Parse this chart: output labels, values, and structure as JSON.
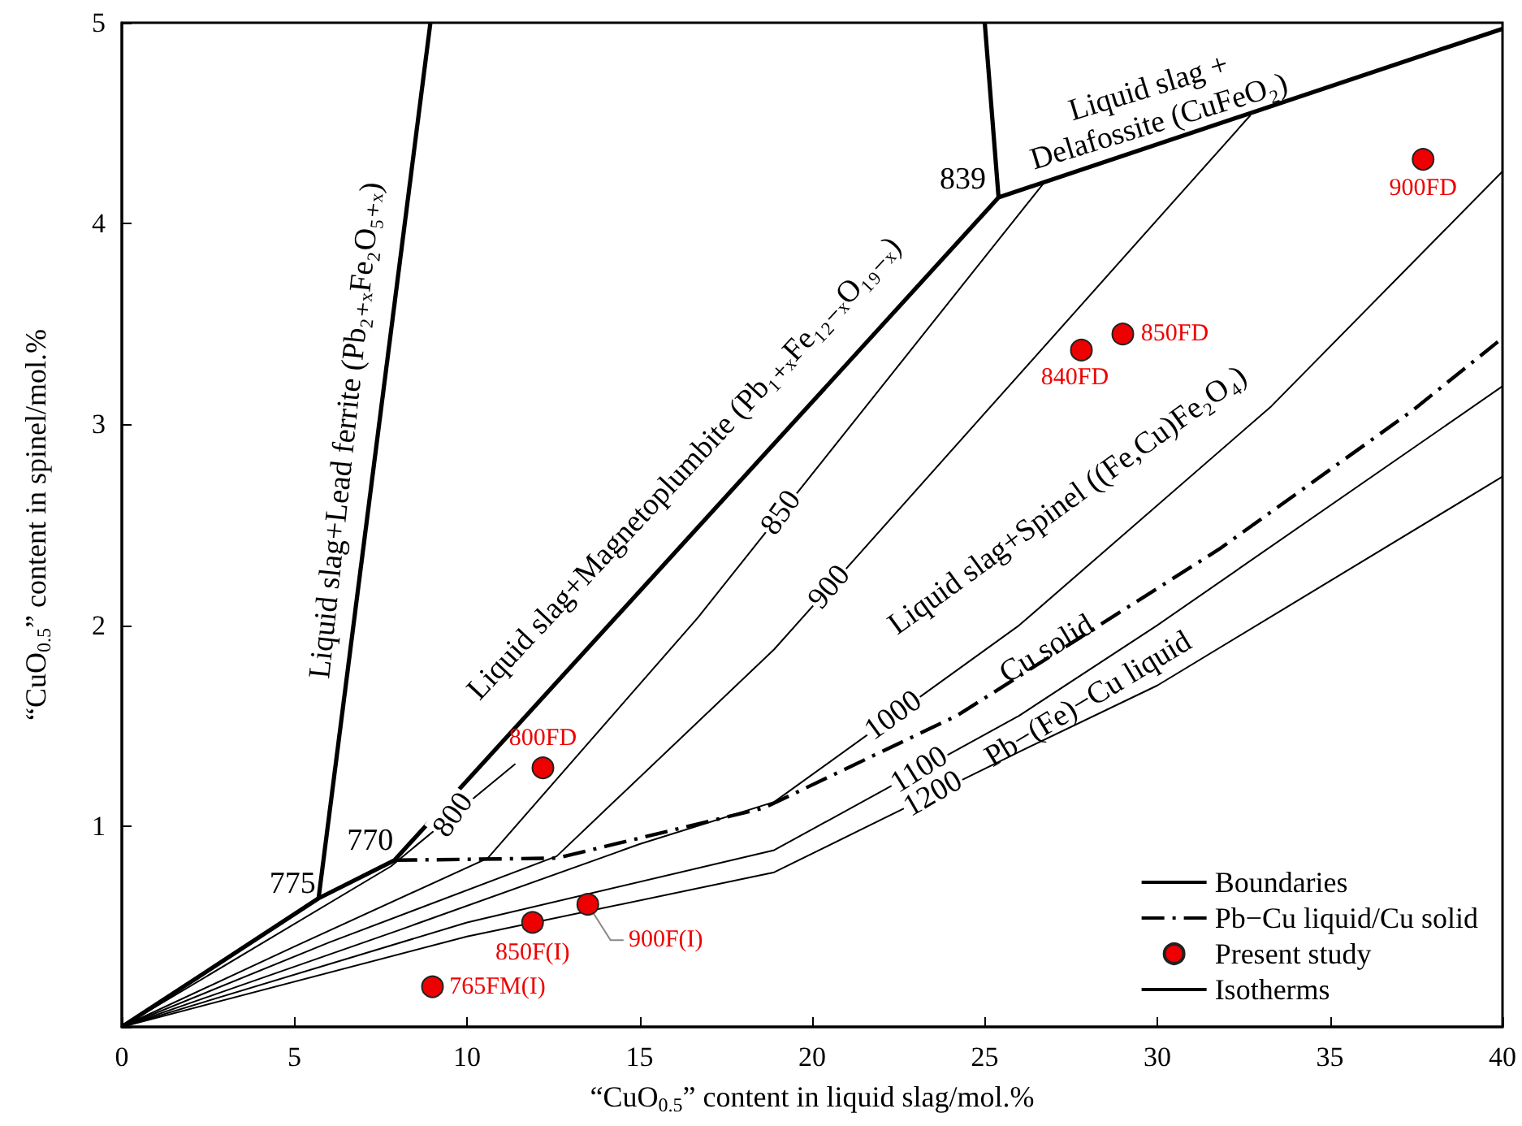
{
  "chart_data": {
    "type": "line",
    "xlabel": "“CuO$_{0.5}$” content in liquid slag/mol.%",
    "ylabel": "“CuO$_{0.5}$” content in spinel/mol.%",
    "xlim": [
      0,
      40
    ],
    "xticks": [
      0,
      5,
      10,
      15,
      20,
      25,
      30,
      35,
      40
    ],
    "ylim": [
      0,
      5
    ],
    "yticks": [
      {
        "value": 0,
        "label": null
      },
      1,
      2,
      3,
      4,
      5
    ],
    "grid": false,
    "legend": "bottom right",
    "series": [
      {
        "name": "Boundaries",
        "color": "#000000",
        "line_style": "solid",
        "marker": "none",
        "x": [
          0,
          5.7,
          7.9,
          25.4,
          40
        ],
        "values": [
          0,
          0.64,
          0.83,
          4.13,
          4.97
        ]
      },
      {
        "color": "#000000",
        "line_style": "solid",
        "marker": "none",
        "x": [
          5.7,
          8.94
        ],
        "values": [
          0.64,
          5
        ]
      },
      {
        "color": "#000000",
        "line_style": "solid",
        "marker": "none",
        "x": [
          25.4,
          25.0
        ],
        "values": [
          4.13,
          5
        ]
      },
      {
        "name": "Pb−Cu liquid/Cu solid",
        "color": "#000000",
        "line_style": "dashdot",
        "marker": "none",
        "x": [
          7.9,
          12.6,
          18.6,
          24.2,
          31.8,
          37.4,
          40
        ],
        "values": [
          0.83,
          0.84,
          1.09,
          1.55,
          2.38,
          3.07,
          3.43
        ]
      },
      {
        "name": "Present study",
        "type": "scatter",
        "color": "#ee0000",
        "marker": "circle",
        "x": [
          12.2,
          27.8,
          29.0,
          37.7,
          11.9,
          13.5,
          9.0
        ],
        "values": [
          1.29,
          3.37,
          3.45,
          4.32,
          0.52,
          0.61,
          0.2
        ]
      },
      {
        "name": "Isotherms",
        "color": "#000000",
        "line_style": "solid",
        "marker": "none",
        "x": [
          0,
          4,
          7.8,
          11.4
        ],
        "values": [
          0,
          0.41,
          0.8,
          1.31
        ]
      },
      {
        "color": "#000000",
        "line_style": "solid",
        "marker": "none",
        "x": [
          0,
          5,
          10.6,
          16.7,
          26.7
        ],
        "values": [
          0,
          0.4,
          0.84,
          2.04,
          4.2
        ]
      },
      {
        "color": "#000000",
        "line_style": "solid",
        "marker": "none",
        "x": [
          0,
          6,
          12.6,
          18.9,
          32.7
        ],
        "values": [
          0,
          0.42,
          0.85,
          1.88,
          4.54
        ]
      },
      {
        "color": "#000000",
        "line_style": "solid",
        "marker": "none",
        "x": [
          0,
          8,
          15,
          18.9,
          26,
          33.3,
          40
        ],
        "values": [
          0,
          0.48,
          0.91,
          1.12,
          2.0,
          3.09,
          4.26
        ]
      },
      {
        "color": "#000000",
        "line_style": "solid",
        "marker": "none",
        "x": [
          0,
          10,
          18.9,
          26,
          30,
          40
        ],
        "values": [
          0,
          0.52,
          0.88,
          1.55,
          2.0,
          3.19
        ]
      },
      {
        "color": "#000000",
        "line_style": "solid",
        "marker": "none",
        "x": [
          0,
          10,
          18.9,
          26,
          30,
          40
        ],
        "values": [
          0,
          0.45,
          0.77,
          1.37,
          1.7,
          2.74
        ]
      }
    ],
    "annotations": [
      "Liquid slag+Lead ferrite (Pb₂₊ₓFe₂O₅₊ₓ)",
      "Liquid slag+Magnetoplumbite (Pb₁₊ₓFe₁₂₋ₓO₁₉₋ₓ)",
      "Liquid slag +\nDelafossite (CuFeO₂)",
      "Liquid slag+Spinel ((Fe,Cu)Fe₂O₄)",
      "Cu solid",
      "Pb−(Fe)−Cu liquid",
      {
        "text": "775",
        "x": 5.7,
        "y": 0.64
      },
      {
        "text": "770",
        "x": 7.9,
        "y": 0.83
      },
      {
        "text": "839",
        "x": 25.4,
        "y": 4.13
      },
      {
        "text": "800",
        "x": 9.6,
        "y": 1.055
      },
      {
        "text": "850",
        "x": 19.1,
        "y": 2.56
      },
      {
        "text": "900",
        "x": 20.5,
        "y": 2.19
      },
      {
        "text": "1000",
        "x": 22.35,
        "y": 1.55
      },
      {
        "text": "1100",
        "x": 23.1,
        "y": 1.28
      },
      {
        "text": "1200",
        "x": 23.5,
        "y": 1.16
      },
      {
        "text": "800FD",
        "x": 12.2,
        "y": 1.29
      },
      {
        "text": "840FD",
        "x": 27.8,
        "y": 3.37
      },
      {
        "text": "850FD",
        "x": 29.0,
        "y": 3.45
      },
      {
        "text": "900FD",
        "x": 37.7,
        "y": 4.32
      },
      {
        "text": "850F(I)",
        "x": 11.9,
        "y": 0.52
      },
      {
        "text": "900F(I)",
        "x": 13.5,
        "y": 0.61
      },
      {
        "text": "765FM(I)",
        "x": 9.0,
        "y": 0.2
      }
    ]
  }
}
